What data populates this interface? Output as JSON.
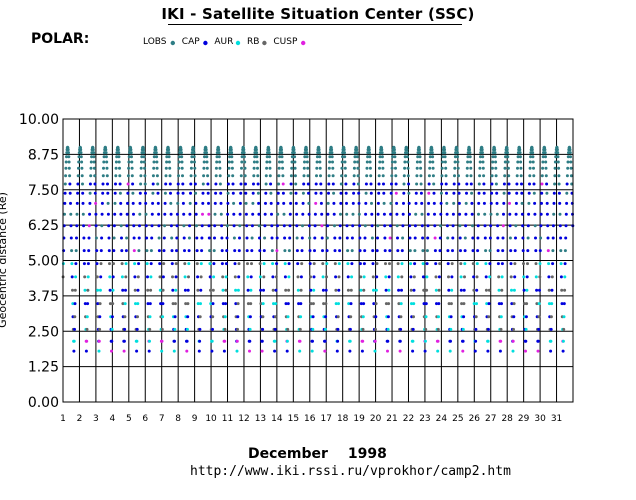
{
  "header": {
    "title": "IKI - Satellite Situation Center (SSC)",
    "spacecraft": "POLAR:"
  },
  "footer": {
    "month": "December",
    "year": "1998",
    "url": "http://www.iki.rssi.ru/vprokhor/camp2.htm"
  },
  "chart_data": {
    "type": "scatter",
    "title": "IKI - Satellite Situation Center (SSC)",
    "xlabel": "December 1998",
    "ylabel": "Geocentric distance (Re)",
    "xlim": [
      1,
      32
    ],
    "ylim": [
      0,
      10
    ],
    "x_ticks": [
      "1",
      "2",
      "3",
      "4",
      "5",
      "6",
      "7",
      "8",
      "9",
      "10",
      "11",
      "12",
      "13",
      "14",
      "15",
      "16",
      "17",
      "18",
      "19",
      "20",
      "21",
      "22",
      "23",
      "24",
      "25",
      "26",
      "27",
      "28",
      "29",
      "30",
      "31"
    ],
    "y_ticks": [
      "0.00",
      "1.25",
      "2.50",
      "3.75",
      "5.00",
      "6.25",
      "7.50",
      "8.75",
      "10.00"
    ],
    "grid": true,
    "legend_position": "top",
    "legend": [
      {
        "label": "LOBS",
        "color": "#2e7d85"
      },
      {
        "label": "CAP",
        "color": "#0000dd"
      },
      {
        "label": "AUR",
        "color": "#00dede"
      },
      {
        "label": "RB",
        "color": "#666666"
      },
      {
        "label": "CUSP",
        "color": "#e020e0"
      }
    ],
    "orbit": {
      "period_days": 0.7625,
      "apogee_re": 9.0,
      "perigee_re": 1.8
    }
  }
}
